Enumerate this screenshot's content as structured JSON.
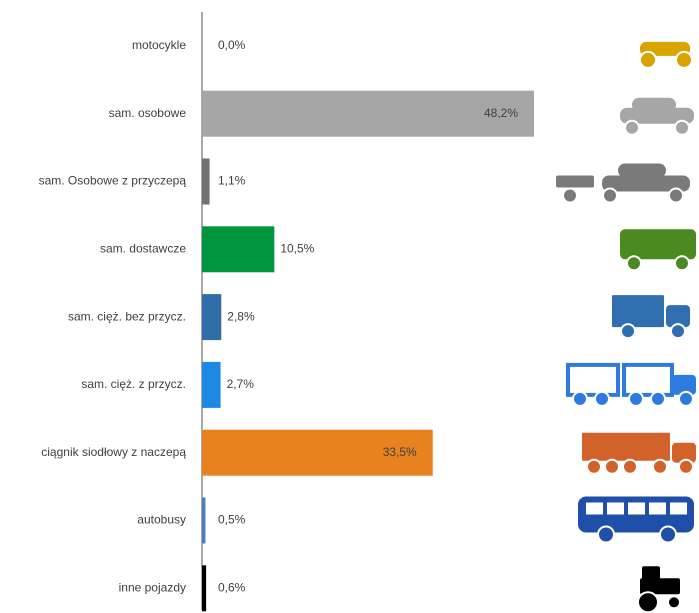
{
  "chart_data": {
    "type": "bar",
    "orientation": "horizontal",
    "categories": [
      "motocykle",
      "sam. osobowe",
      "sam. Osobowe z przyczepą",
      "sam. dostawcze",
      "sam. cięż. bez przycz.",
      "sam. cięż. z przycz.",
      "ciągnik siodłowy z naczepą",
      "autobusy",
      "inne pojazdy"
    ],
    "values": [
      0.0,
      48.2,
      1.1,
      10.5,
      2.8,
      2.7,
      33.5,
      0.5,
      0.6
    ],
    "value_labels": [
      "0,0%",
      "48,2%",
      "1,1%",
      "10,5%",
      "2,8%",
      "2,7%",
      "33,5%",
      "0,5%",
      "0,6%"
    ],
    "colors": [
      "#d9a300",
      "#a6a6a6",
      "#767171",
      "#00963f",
      "#2f6ea9",
      "#1e88e5",
      "#e8821e",
      "#4a7fc1",
      "#000000"
    ]
  }
}
